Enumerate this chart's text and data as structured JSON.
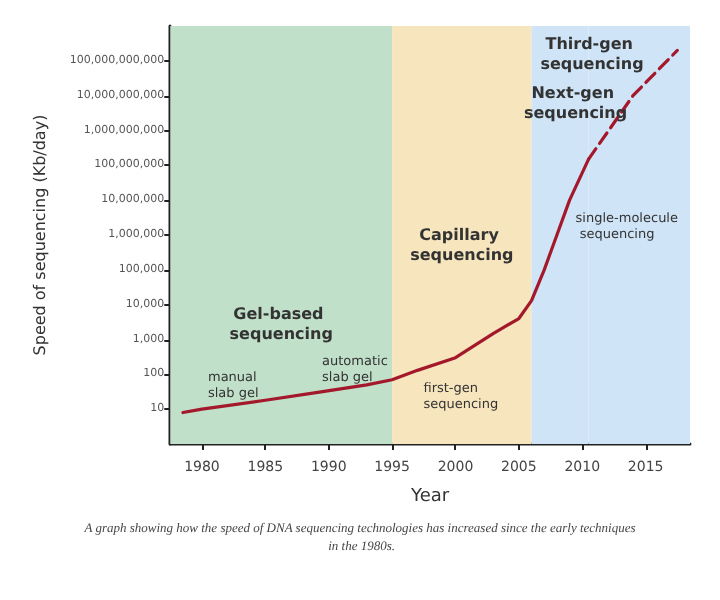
{
  "chart_data": {
    "type": "line",
    "xlabel": "Year",
    "ylabel": "Speed of sequencing (Kb/day)",
    "xlim": [
      1977.5,
      2018.5
    ],
    "xticks": [
      1980,
      1985,
      1990,
      1995,
      2000,
      2005,
      2010,
      2015
    ],
    "log": "y",
    "ylim": [
      1,
      1000000000000
    ],
    "yticks": [
      {
        "value": 10,
        "label": "10"
      },
      {
        "value": 100,
        "label": "100"
      },
      {
        "value": 1000,
        "label": "1,000"
      },
      {
        "value": 10000,
        "label": "10,000"
      },
      {
        "value": 100000,
        "label": "100,000"
      },
      {
        "value": 1000000,
        "label": "1,000,000"
      },
      {
        "value": 10000000,
        "label": "10,000,000"
      },
      {
        "value": 100000000,
        "label": "100,000,000"
      },
      {
        "value": 1000000000,
        "label": "1,000,000,000"
      },
      {
        "value": 10000000000,
        "label": "10,000,000,000"
      },
      {
        "value": 100000000000,
        "label": "100,000,000,000"
      }
    ],
    "series": [
      {
        "color": "#a3192b",
        "line_style": "solid",
        "x": [
          1978.5,
          1980,
          1985,
          1989,
          1993,
          1995,
          1997,
          2000,
          2003,
          2005,
          2006,
          2007,
          2008,
          2009,
          2010.5
        ],
        "values": [
          8,
          10,
          18,
          30,
          50,
          70,
          130,
          300,
          1500,
          4000,
          13000,
          100000,
          1000000,
          10000000,
          150000000
        ]
      },
      {
        "color": "#a3192b",
        "line_style": "dashed",
        "x": [
          2010.5,
          2014,
          2017.5
        ],
        "values": [
          150000000,
          10000000000,
          200000000000
        ]
      }
    ],
    "bands": [
      {
        "axis": "x",
        "from": 1977.5,
        "to": 1995,
        "label": "Gel-based sequencing",
        "color": "#c0e0c9"
      },
      {
        "axis": "x",
        "from": 1995,
        "to": 2006,
        "label": "Capillary sequencing",
        "color": "#f7e5bd"
      },
      {
        "axis": "x",
        "from": 2006,
        "to": 2010.5,
        "label": "Next-gen sequencing",
        "color": "#cfe4f6"
      },
      {
        "axis": "x",
        "from": 2010.5,
        "to": 2018.5,
        "label": "Third-gen sequencing",
        "color": "#cfe4f6"
      }
    ],
    "annotations": [
      {
        "text": "manual slab gel",
        "x": 1980,
        "y": 10
      },
      {
        "text": "automatic slab gel",
        "x": 1989,
        "y": 30
      },
      {
        "text": "first-gen sequencing",
        "x": 1997,
        "y": 130
      },
      {
        "text": "single-molecule sequencing",
        "x": 2009,
        "y": 10000000
      },
      "A graph showing how the speed of DNA sequencing technologies has increased since the early techniques in the 1980s."
    ],
    "grid": false
  }
}
